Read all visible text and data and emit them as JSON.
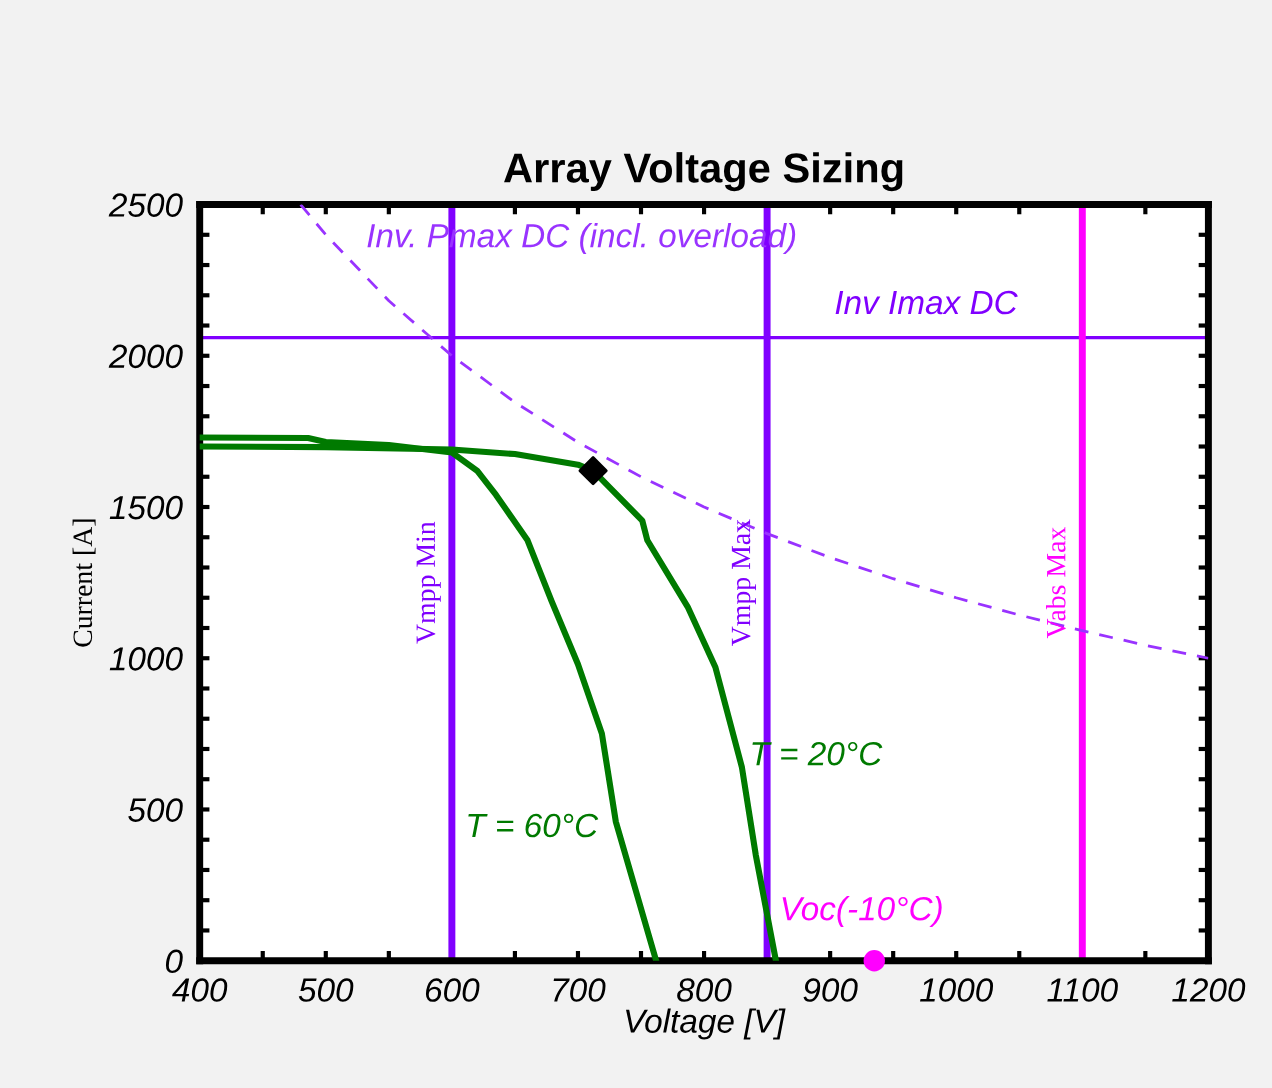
{
  "chart_data": {
    "type": "line",
    "title": "Array Voltage Sizing",
    "xlabel": "Voltage [V]",
    "ylabel": "Current [A]",
    "xlim": [
      400,
      1200
    ],
    "ylim": [
      0,
      2500
    ],
    "xticks": [
      400,
      {
        "value": 450,
        "label": null
      },
      500,
      {
        "value": 550,
        "label": null
      },
      600,
      {
        "value": 650,
        "label": null
      },
      700,
      {
        "value": 750,
        "label": null
      },
      800,
      {
        "value": 850,
        "label": null
      },
      900,
      {
        "value": 950,
        "label": null
      },
      1000,
      {
        "value": 1050,
        "label": null
      },
      1100,
      {
        "value": 1150,
        "label": null
      },
      1200
    ],
    "yticks": [
      0,
      {
        "value": 100,
        "label": null
      },
      {
        "value": 200,
        "label": null
      },
      {
        "value": 300,
        "label": null
      },
      {
        "value": 400,
        "label": null
      },
      500,
      {
        "value": 600,
        "label": null
      },
      {
        "value": 700,
        "label": null
      },
      {
        "value": 800,
        "label": null
      },
      {
        "value": 900,
        "label": null
      },
      1000,
      {
        "value": 1100,
        "label": null
      },
      {
        "value": 1200,
        "label": null
      },
      {
        "value": 1300,
        "label": null
      },
      {
        "value": 1400,
        "label": null
      },
      1500,
      {
        "value": 1600,
        "label": null
      },
      {
        "value": 1700,
        "label": null
      },
      {
        "value": 1800,
        "label": null
      },
      {
        "value": 1900,
        "label": null
      },
      2000,
      {
        "value": 2100,
        "label": null
      },
      {
        "value": 2200,
        "label": null
      },
      {
        "value": 2300,
        "label": null
      },
      {
        "value": 2400,
        "label": null
      },
      2500
    ],
    "grid": false,
    "legend": false,
    "series": [
      {
        "name": "T = 20°C",
        "color": "#007a00",
        "line_style": "solid",
        "marker": "none",
        "x": [
          400,
          500,
          600,
          650,
          700,
          712,
          751,
          755,
          787,
          809,
          830,
          841,
          857
        ],
        "values": [
          1700,
          1698,
          1690,
          1675,
          1640,
          1620,
          1455,
          1390,
          1170,
          970,
          640,
          350,
          0
        ]
      },
      {
        "name": "T = 60°C",
        "color": "#007a00",
        "line_style": "solid",
        "marker": "none",
        "x": [
          400,
          486,
          500,
          550,
          600,
          620,
          635,
          660,
          679,
          700,
          719,
          730,
          762
        ],
        "values": [
          1730,
          1728,
          1715,
          1705,
          1680,
          1620,
          1540,
          1390,
          1190,
          980,
          750,
          460,
          0
        ]
      },
      {
        "name": "Inv. Pmax DC (incl. overload)",
        "color": "#9933ff",
        "line_style": "dashed",
        "marker": "none",
        "x": [
          480,
          500,
          550,
          600,
          650,
          700,
          750,
          800,
          850,
          900,
          950,
          1000,
          1050,
          1100,
          1150,
          1200
        ],
        "values": [
          2500,
          2400,
          2182,
          2000,
          1846,
          1714,
          1600,
          1500,
          1412,
          1333,
          1263,
          1200,
          1143,
          1091,
          1043,
          1000
        ]
      },
      {
        "type": "scatter",
        "color": "#000000",
        "marker": "diamond",
        "x": [
          712
        ],
        "values": [
          1620
        ]
      },
      {
        "type": "scatter",
        "name": "Voc(-10°C)",
        "color": "#ff00ff",
        "marker": "circle",
        "x": [
          935
        ],
        "values": [
          0
        ]
      }
    ],
    "ref_lines": [
      {
        "axis": "y",
        "value": 2060,
        "label": "Inv Imax DC",
        "color": "#8000ff"
      },
      {
        "axis": "x",
        "value": 600,
        "label": "Vmpp Min",
        "color": "#8000ff"
      },
      {
        "axis": "x",
        "value": 850,
        "label": "Vmpp Max",
        "color": "#8000ff"
      },
      {
        "axis": "x",
        "value": 1100,
        "label": "Vabs Max",
        "color": "#ff00ff"
      }
    ]
  }
}
